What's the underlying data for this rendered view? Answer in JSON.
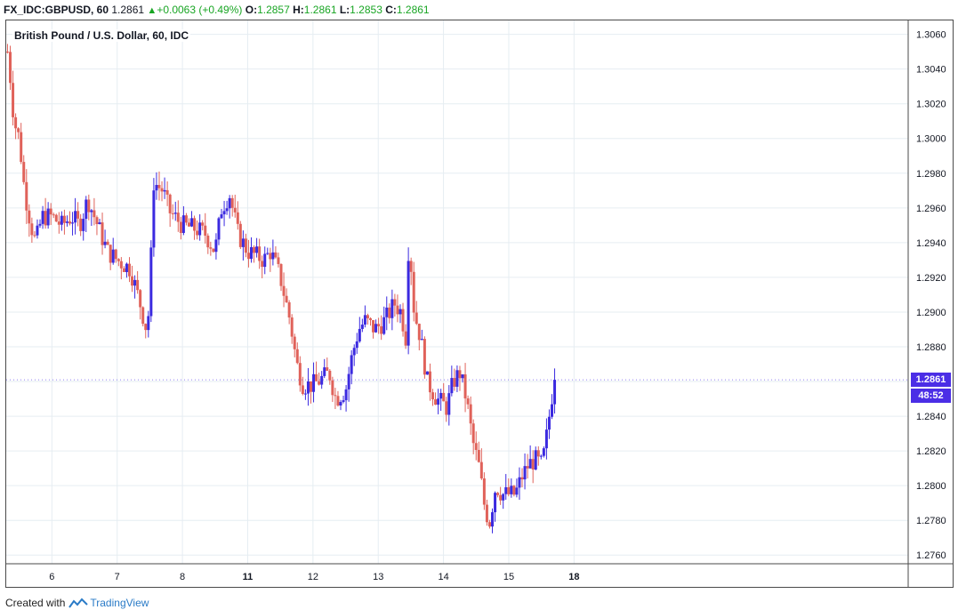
{
  "header": {
    "symbol": "FX_IDC:GBPUSD, 60",
    "last": "1.2861",
    "change": "+0.0063 (+0.49%)",
    "o_label": "O:",
    "o_value": "1.2857",
    "h_label": "H:",
    "h_value": "1.2861",
    "l_label": "L:",
    "l_value": "1.2853",
    "c_label": "C:",
    "c_value": "1.2861"
  },
  "chart_title": "British Pound / U.S. Dollar, 60, IDC",
  "price_badge": "1.2861",
  "time_badge": "48:52",
  "footer": {
    "created_with": "Created with",
    "brand": "TradingView"
  },
  "colors": {
    "up": "#3b2ae0",
    "down": "#e0625a",
    "grid": "#e6edf2",
    "badge": "#4b2ee6",
    "change_green": "#18a523"
  },
  "chart_data": {
    "type": "candlestick",
    "title": "British Pound / U.S. Dollar, 60, IDC",
    "interval": "60",
    "ylim": [
      1.2755,
      1.3068
    ],
    "yticks": [
      1.276,
      1.278,
      1.28,
      1.282,
      1.284,
      1.286,
      1.288,
      1.29,
      1.292,
      1.294,
      1.296,
      1.298,
      1.3,
      1.302,
      1.304,
      1.306
    ],
    "xlim": [
      5.3,
      19.12
    ],
    "xticks": [
      {
        "label": "6",
        "value": 6,
        "bold": false
      },
      {
        "label": "7",
        "value": 7,
        "bold": false
      },
      {
        "label": "8",
        "value": 8,
        "bold": false
      },
      {
        "label": "11",
        "value": 9,
        "bold": true
      },
      {
        "label": "12",
        "value": 10,
        "bold": false
      },
      {
        "label": "13",
        "value": 11,
        "bold": false
      },
      {
        "label": "14",
        "value": 12,
        "bold": false
      },
      {
        "label": "15",
        "value": 13,
        "bold": false
      },
      {
        "label": "18",
        "value": 14,
        "bold": true
      }
    ],
    "last_price": 1.2861,
    "anchors": [
      [
        5.32,
        1.305
      ],
      [
        5.35,
        1.304
      ],
      [
        5.42,
        1.301
      ],
      [
        5.5,
        1.3
      ],
      [
        5.58,
        1.297
      ],
      [
        5.68,
        1.295
      ],
      [
        5.75,
        1.294
      ],
      [
        5.85,
        1.2955
      ],
      [
        6.0,
        1.2955
      ],
      [
        6.15,
        1.295
      ],
      [
        6.3,
        1.2955
      ],
      [
        6.42,
        1.295
      ],
      [
        6.55,
        1.2965
      ],
      [
        6.7,
        1.295
      ],
      [
        6.85,
        1.2935
      ],
      [
        7.0,
        1.293
      ],
      [
        7.2,
        1.2925
      ],
      [
        7.35,
        1.2905
      ],
      [
        7.45,
        1.289
      ],
      [
        7.5,
        1.2905
      ],
      [
        7.55,
        1.2975
      ],
      [
        7.7,
        1.297
      ],
      [
        7.8,
        1.2958
      ],
      [
        8.0,
        1.295
      ],
      [
        8.2,
        1.2948
      ],
      [
        8.35,
        1.2945
      ],
      [
        8.5,
        1.2935
      ],
      [
        8.6,
        1.296
      ],
      [
        8.72,
        1.2968
      ],
      [
        8.85,
        1.2945
      ],
      [
        9.0,
        1.2935
      ],
      [
        9.15,
        1.2932
      ],
      [
        9.25,
        1.293
      ],
      [
        9.35,
        1.2935
      ],
      [
        9.5,
        1.292
      ],
      [
        9.65,
        1.2895
      ],
      [
        9.75,
        1.287
      ],
      [
        9.85,
        1.2858
      ],
      [
        10.0,
        1.2858
      ],
      [
        10.15,
        1.2862
      ],
      [
        10.25,
        1.2865
      ],
      [
        10.35,
        1.285
      ],
      [
        10.5,
        1.2855
      ],
      [
        10.6,
        1.2875
      ],
      [
        10.7,
        1.289
      ],
      [
        10.8,
        1.2895
      ],
      [
        10.95,
        1.289
      ],
      [
        11.1,
        1.2895
      ],
      [
        11.25,
        1.2905
      ],
      [
        11.35,
        1.29
      ],
      [
        11.42,
        1.2885
      ],
      [
        11.47,
        1.2945
      ],
      [
        11.55,
        1.29
      ],
      [
        11.65,
        1.2885
      ],
      [
        11.75,
        1.286
      ],
      [
        11.9,
        1.285
      ],
      [
        12.05,
        1.2845
      ],
      [
        12.15,
        1.286
      ],
      [
        12.25,
        1.2865
      ],
      [
        12.35,
        1.285
      ],
      [
        12.45,
        1.2825
      ],
      [
        12.55,
        1.281
      ],
      [
        12.62,
        1.279
      ],
      [
        12.7,
        1.2778
      ],
      [
        12.8,
        1.28
      ],
      [
        12.9,
        1.2795
      ],
      [
        13.0,
        1.2795
      ],
      [
        13.1,
        1.2795
      ],
      [
        13.2,
        1.2805
      ],
      [
        13.3,
        1.2812
      ],
      [
        13.4,
        1.2815
      ],
      [
        13.5,
        1.2812
      ],
      [
        13.55,
        1.282
      ],
      [
        13.62,
        1.284
      ],
      [
        13.68,
        1.2857
      ],
      [
        13.71,
        1.2861
      ]
    ]
  }
}
